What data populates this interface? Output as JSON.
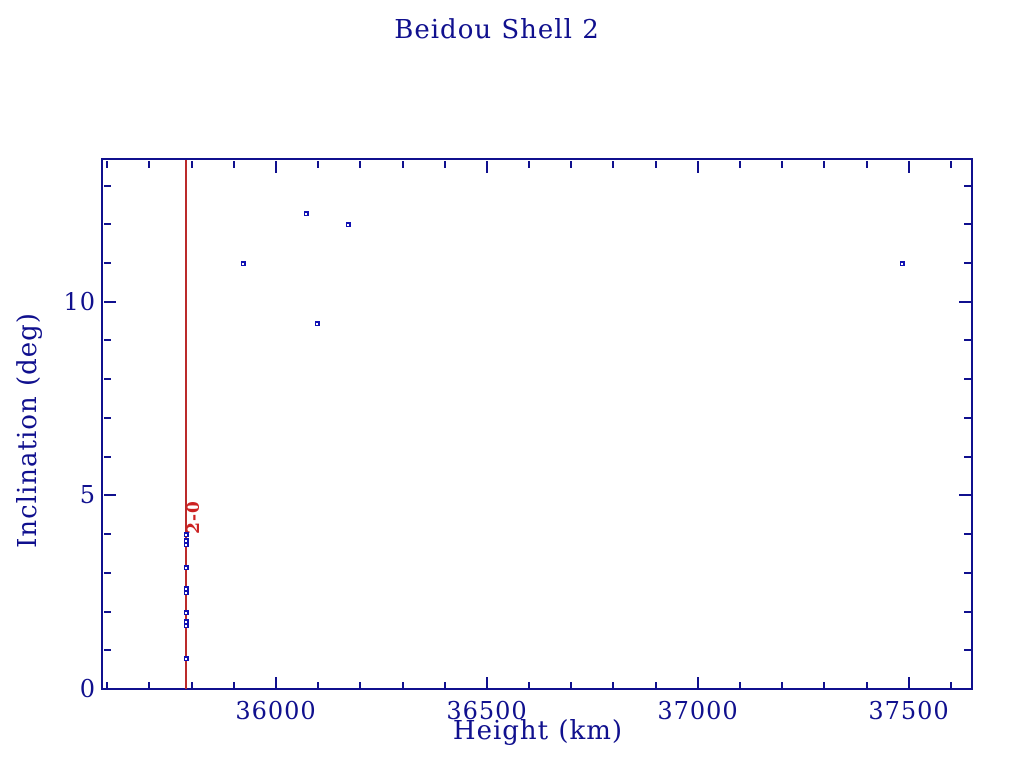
{
  "figure": {
    "title": "Beidou Shell 2",
    "xlabel": "Height (km)",
    "ylabel": "Inclination (deg)"
  },
  "colors": {
    "axis": "#10108e",
    "marker": "#1111b2",
    "reference_line": "#bb2a2a",
    "reference_label": "#cc2222",
    "background": "#ffffff"
  },
  "chart_data": {
    "type": "scatter",
    "title": "Beidou Shell 2",
    "xlabel": "Height (km)",
    "ylabel": "Inclination (deg)",
    "xlim": [
      35590,
      37650
    ],
    "ylim": [
      0,
      13.66
    ],
    "x_major_ticks": [
      36000,
      36500,
      37000,
      37500
    ],
    "x_major_tick_labels": [
      "36000",
      "36500",
      "37000",
      "37500"
    ],
    "x_minor_step": 100,
    "y_major_ticks": [
      0,
      5,
      10
    ],
    "y_major_tick_labels": [
      "0",
      "5",
      "10"
    ],
    "y_minor_step": 1,
    "grid": false,
    "legend": "none",
    "points": [
      {
        "x": 35786,
        "y": 4.0
      },
      {
        "x": 35786,
        "y": 3.85
      },
      {
        "x": 35786,
        "y": 3.75
      },
      {
        "x": 35786,
        "y": 3.15
      },
      {
        "x": 35786,
        "y": 2.6
      },
      {
        "x": 35786,
        "y": 2.5
      },
      {
        "x": 35786,
        "y": 2.0
      },
      {
        "x": 35786,
        "y": 1.75
      },
      {
        "x": 35786,
        "y": 1.65
      },
      {
        "x": 35786,
        "y": 0.8
      },
      {
        "x": 35923,
        "y": 11.0
      },
      {
        "x": 36071,
        "y": 12.3
      },
      {
        "x": 36098,
        "y": 9.45
      },
      {
        "x": 36171,
        "y": 12.0
      },
      {
        "x": 37485,
        "y": 11.0
      }
    ],
    "reference_line": {
      "x": 35786,
      "label": "2-0",
      "label_y": 4.45,
      "label_rotation_deg": -90
    }
  }
}
